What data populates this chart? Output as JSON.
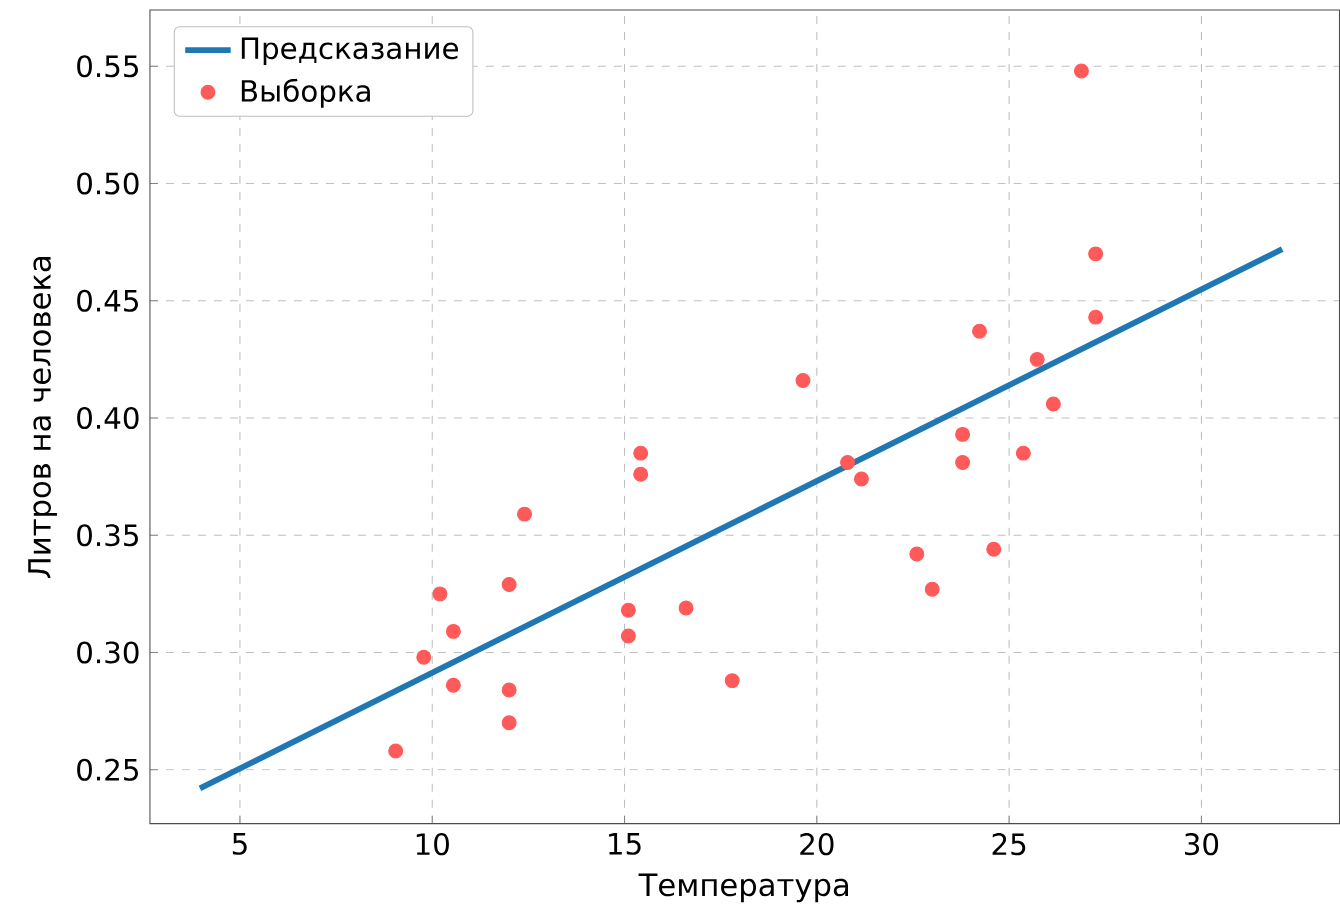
{
  "chart_data": {
    "type": "scatter",
    "xlabel": "Температура",
    "ylabel": "Литров на человека",
    "xlim": [
      2.66,
      33.59
    ],
    "ylim": [
      0.227,
      0.574
    ],
    "xticks": [
      5,
      10,
      15,
      20,
      25,
      30
    ],
    "yticks": [
      {
        "value": 0.25,
        "label": "0.25"
      },
      {
        "value": 0.3,
        "label": "0.30"
      },
      {
        "value": 0.35,
        "label": "0.35"
      },
      {
        "value": 0.4,
        "label": "0.40"
      },
      {
        "value": 0.45,
        "label": "0.45"
      },
      {
        "value": 0.5,
        "label": "0.50"
      },
      {
        "value": 0.55,
        "label": "0.55"
      }
    ],
    "grid": true,
    "legend": "top left",
    "series": [
      {
        "name": "Предсказание",
        "type": "line",
        "marker": "none",
        "color": "#1f77b4",
        "x": [
          3.96,
          32.1
        ],
        "values": [
          0.242,
          0.472
        ]
      },
      {
        "name": "Выборка",
        "color": "#ff5a5a",
        "marker": "circle",
        "x": [
          26.88,
          27.25,
          27.25,
          24.23,
          25.73,
          19.64,
          26.15,
          23.79,
          15.42,
          25.37,
          20.8,
          23.79,
          15.42,
          21.16,
          12.4,
          22.6,
          24.6,
          10.2,
          12.0,
          23.0,
          15.1,
          16.6,
          10.55,
          15.1,
          9.78,
          10.55,
          17.8,
          12.0,
          12.0,
          9.05
        ],
        "values": [
          0.548,
          0.47,
          0.443,
          0.437,
          0.425,
          0.416,
          0.406,
          0.393,
          0.385,
          0.385,
          0.381,
          0.381,
          0.376,
          0.374,
          0.359,
          0.342,
          0.344,
          0.325,
          0.329,
          0.327,
          0.318,
          0.319,
          0.309,
          0.307,
          0.298,
          0.286,
          0.288,
          0.284,
          0.27,
          0.258
        ]
      }
    ]
  }
}
